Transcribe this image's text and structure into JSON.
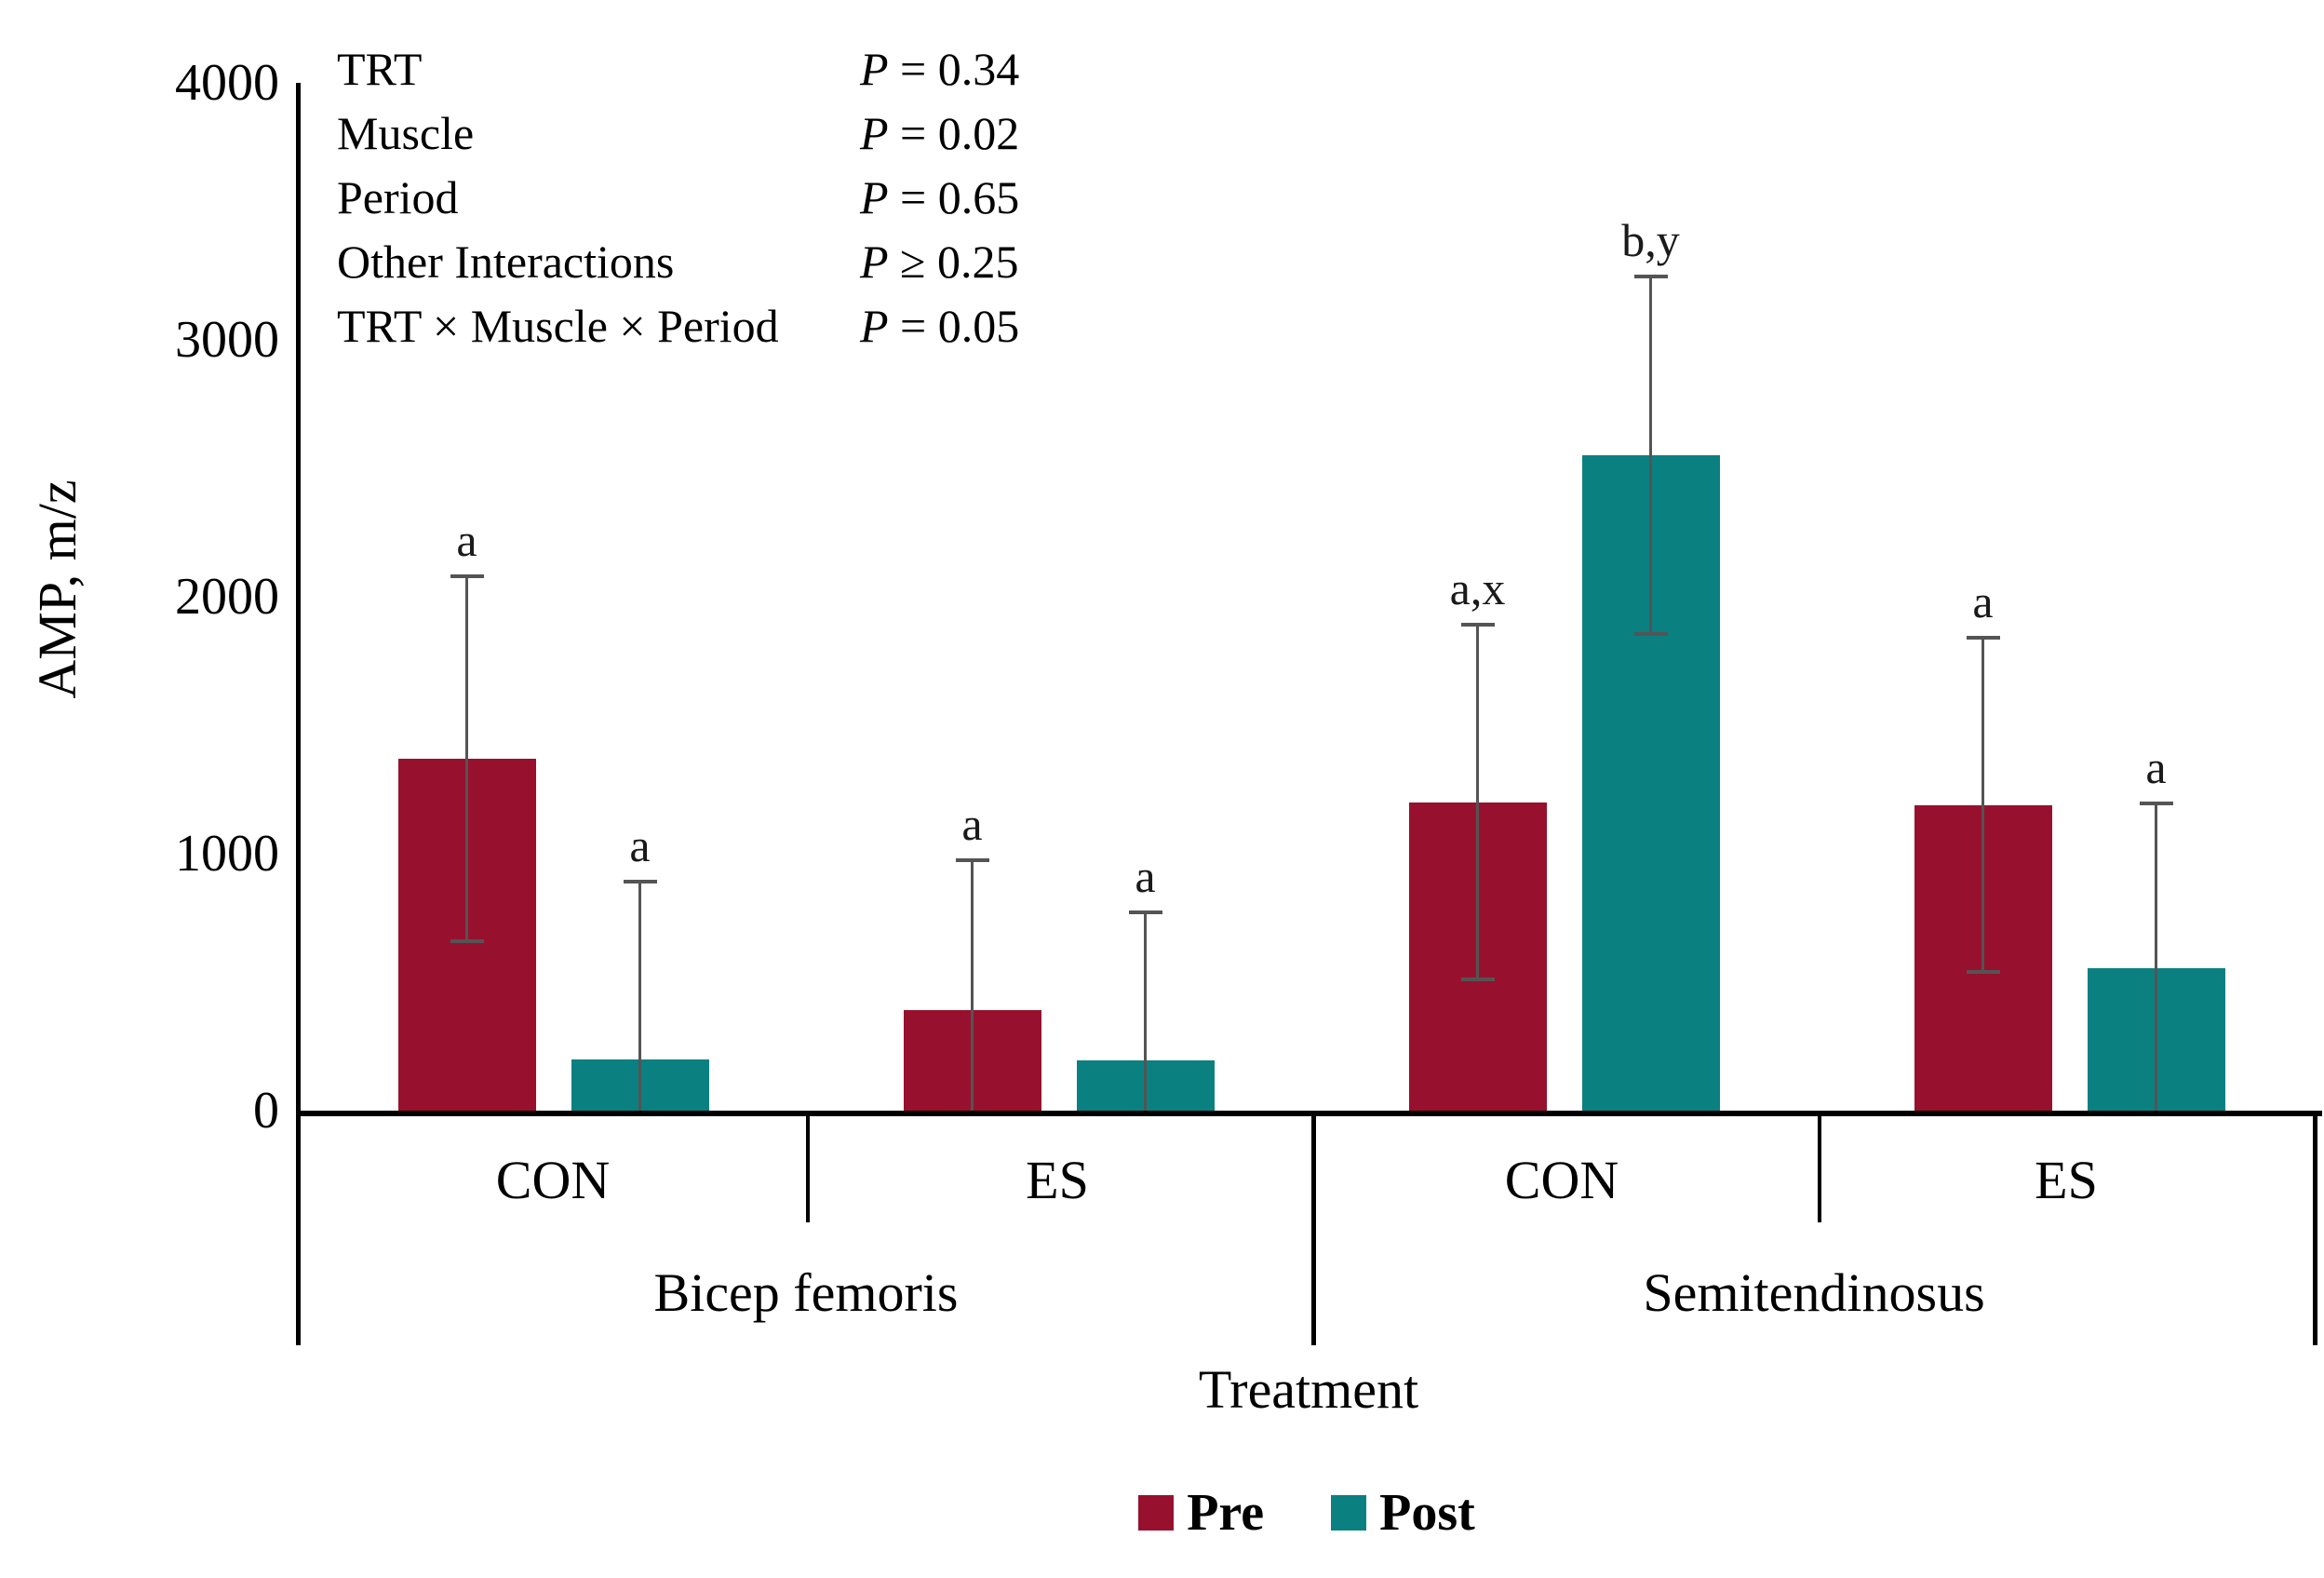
{
  "chart_data": {
    "type": "bar",
    "ylabel": "AMP, m/z",
    "xlabel": "Treatment",
    "ylim": [
      0,
      4000
    ],
    "yticks": [
      0,
      1000,
      2000,
      3000,
      4000
    ],
    "grid": false,
    "legend_position": "bottom-center",
    "series_names": [
      "Pre",
      "Post"
    ],
    "colors": {
      "pre": "#97112E",
      "post": "#0B8081",
      "error_bar": "#545454"
    },
    "stats": [
      {
        "factor": "TRT",
        "p_symbol": "P",
        "relation": "=",
        "value": "0.34"
      },
      {
        "factor": "Muscle",
        "p_symbol": "P",
        "relation": "=",
        "value": "0.02"
      },
      {
        "factor": "Period",
        "p_symbol": "P",
        "relation": "=",
        "value": "0.65"
      },
      {
        "factor": "Other Interactions",
        "p_symbol": "P",
        "relation": "≥",
        "value": "0.25"
      },
      {
        "factor": "TRT × Muscle × Period",
        "p_symbol": "P",
        "relation": "=",
        "value": "0.05"
      }
    ],
    "groups": [
      {
        "muscle": "Bicep femoris",
        "cells": [
          {
            "treatment": "CON",
            "bars": [
              {
                "series": "Pre",
                "value": 1370,
                "error": 710,
                "letter": "a"
              },
              {
                "series": "Post",
                "value": 200,
                "error": 690,
                "letter": "a"
              }
            ]
          },
          {
            "treatment": "ES",
            "bars": [
              {
                "series": "Pre",
                "value": 390,
                "error": 585,
                "letter": "a"
              },
              {
                "series": "Post",
                "value": 195,
                "error": 575,
                "letter": "a"
              }
            ]
          }
        ]
      },
      {
        "muscle": "Semitendinosus",
        "cells": [
          {
            "treatment": "CON",
            "bars": [
              {
                "series": "Pre",
                "value": 1200,
                "error": 690,
                "letter": "a,x"
              },
              {
                "series": "Post",
                "value": 2550,
                "error": 695,
                "letter": "b,y"
              }
            ]
          },
          {
            "treatment": "ES",
            "bars": [
              {
                "series": "Pre",
                "value": 1190,
                "error": 650,
                "letter": "a"
              },
              {
                "series": "Post",
                "value": 555,
                "error": 640,
                "letter": "a"
              }
            ]
          }
        ]
      }
    ],
    "legend": [
      {
        "name": "Pre",
        "color": "#97112E"
      },
      {
        "name": "Post",
        "color": "#0B8081"
      }
    ]
  }
}
